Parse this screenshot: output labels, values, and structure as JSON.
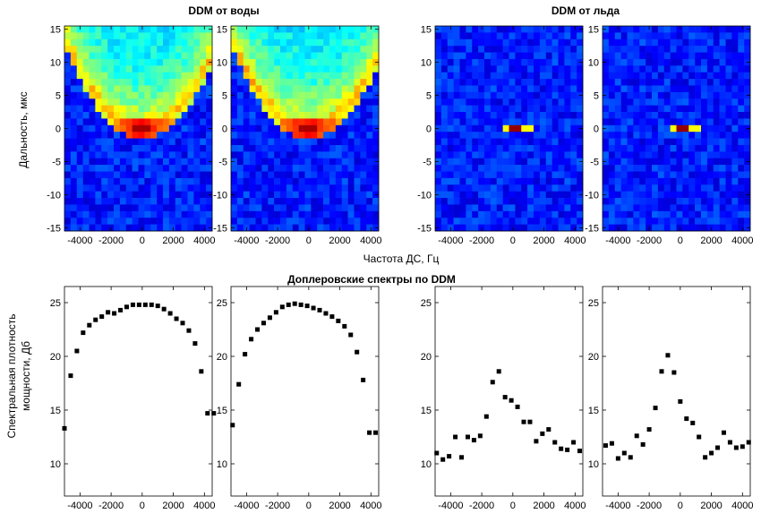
{
  "titles": {
    "water": "DDM от воды",
    "ice": "DDM от льда",
    "spectra": "Доплеровские спектры по DDM"
  },
  "axis_labels": {
    "ddm_y": "Дальность, мкс",
    "ddm_x": "Частота ДС, Гц",
    "spec_y_line1": "Спектральная плотность",
    "spec_y_line2": "мощности, Дб"
  },
  "chart_data": [
    {
      "type": "heatmap",
      "id": "ddm-water-1",
      "title": "DDM от воды",
      "ylabel": "Дальность, мкс",
      "xlim": [
        -5000,
        4500
      ],
      "ylim": [
        -15.5,
        15.5
      ],
      "xticks": [
        -4000,
        -2000,
        0,
        2000,
        4000
      ],
      "yticks": [
        -15,
        -10,
        -5,
        0,
        5,
        10,
        15
      ],
      "pattern": "parabola",
      "peak": {
        "x": 0,
        "y": 0
      },
      "colormap": "jet"
    },
    {
      "type": "heatmap",
      "id": "ddm-water-2",
      "xlim": [
        -5000,
        4500
      ],
      "ylim": [
        -15.5,
        15.5
      ],
      "xticks": [
        -4000,
        -2000,
        0,
        2000,
        4000
      ],
      "yticks": [
        -15,
        -10,
        -5,
        0,
        5,
        10,
        15
      ],
      "pattern": "parabola",
      "peak": {
        "x": 0,
        "y": 0
      },
      "colormap": "jet"
    },
    {
      "type": "heatmap",
      "id": "ddm-ice-1",
      "title": "DDM от льда",
      "xlim": [
        -5000,
        4500
      ],
      "ylim": [
        -15.5,
        15.5
      ],
      "xticks": [
        -4000,
        -2000,
        0,
        2000,
        4000
      ],
      "yticks": [
        -15,
        -10,
        -5,
        0,
        5,
        10,
        15
      ],
      "pattern": "point",
      "peak": {
        "x": 250,
        "y": 0
      },
      "colormap": "jet"
    },
    {
      "type": "heatmap",
      "id": "ddm-ice-2",
      "xlim": [
        -5000,
        4500
      ],
      "ylim": [
        -15.5,
        15.5
      ],
      "xticks": [
        -4000,
        -2000,
        0,
        2000,
        4000
      ],
      "yticks": [
        -15,
        -10,
        -5,
        0,
        5,
        10,
        15
      ],
      "pattern": "point",
      "peak": {
        "x": 250,
        "y": 0
      },
      "colormap": "jet"
    },
    {
      "type": "scatter",
      "id": "spectrum-water-1",
      "xlim": [
        -5000,
        4500
      ],
      "ylim": [
        7,
        26.5
      ],
      "xticks": [
        -4000,
        -2000,
        0,
        2000,
        4000
      ],
      "yticks": [
        10,
        15,
        20,
        25
      ],
      "x": [
        -5000,
        -4600,
        -4200,
        -3800,
        -3400,
        -3000,
        -2600,
        -2200,
        -1800,
        -1400,
        -1000,
        -600,
        -200,
        200,
        600,
        1000,
        1400,
        1800,
        2200,
        2600,
        3000,
        3400,
        3800,
        4200,
        4600
      ],
      "y": [
        13.3,
        18.2,
        20.5,
        22.2,
        22.9,
        23.4,
        23.7,
        24.1,
        24.0,
        24.3,
        24.6,
        24.8,
        24.8,
        24.8,
        24.8,
        24.7,
        24.4,
        24.0,
        23.5,
        23.1,
        22.4,
        21.2,
        18.6,
        14.7,
        14.7
      ]
    },
    {
      "type": "scatter",
      "id": "spectrum-water-2",
      "xlim": [
        -5000,
        4500
      ],
      "ylim": [
        7,
        26.5
      ],
      "xticks": [
        -4000,
        -2000,
        0,
        2000,
        4000
      ],
      "yticks": [
        10,
        15,
        20,
        25
      ],
      "x": [
        -4900,
        -4500,
        -4100,
        -3700,
        -3300,
        -2900,
        -2500,
        -2100,
        -1700,
        -1300,
        -900,
        -500,
        -100,
        300,
        700,
        1100,
        1500,
        1900,
        2300,
        2700,
        3100,
        3500,
        3900,
        4300
      ],
      "y": [
        13.6,
        17.4,
        20.2,
        21.6,
        22.5,
        23.1,
        23.6,
        24.1,
        24.6,
        24.8,
        24.9,
        24.8,
        24.7,
        24.5,
        24.3,
        24.0,
        23.7,
        23.3,
        22.8,
        22.0,
        20.4,
        17.8,
        12.9,
        12.9
      ]
    },
    {
      "type": "scatter",
      "id": "spectrum-ice-1",
      "xlim": [
        -5000,
        4500
      ],
      "ylim": [
        7,
        26.5
      ],
      "xticks": [
        -4000,
        -2000,
        0,
        2000,
        4000
      ],
      "yticks": [
        10,
        15,
        20,
        25
      ],
      "x": [
        -4900,
        -4500,
        -4100,
        -3700,
        -3300,
        -2900,
        -2500,
        -2100,
        -1700,
        -1300,
        -900,
        -500,
        -100,
        300,
        700,
        1100,
        1500,
        1900,
        2300,
        2700,
        3100,
        3500,
        3900,
        4300
      ],
      "y": [
        11.0,
        10.4,
        10.7,
        12.5,
        10.6,
        12.5,
        12.2,
        12.6,
        14.4,
        17.6,
        18.6,
        16.2,
        15.9,
        15.3,
        13.9,
        13.9,
        12.1,
        12.8,
        13.2,
        12.0,
        11.4,
        11.3,
        12.0,
        11.2
      ]
    },
    {
      "type": "scatter",
      "id": "spectrum-ice-2",
      "xlim": [
        -5000,
        4500
      ],
      "ylim": [
        7,
        26.5
      ],
      "xticks": [
        -4000,
        -2000,
        0,
        2000,
        4000
      ],
      "yticks": [
        10,
        15,
        20,
        25
      ],
      "x": [
        -4800,
        -4400,
        -4000,
        -3600,
        -3200,
        -2800,
        -2400,
        -2000,
        -1600,
        -1200,
        -800,
        -400,
        0,
        400,
        800,
        1200,
        1600,
        2000,
        2400,
        2800,
        3200,
        3600,
        4000,
        4400
      ],
      "y": [
        11.7,
        11.9,
        10.5,
        11.0,
        10.6,
        12.6,
        11.8,
        13.2,
        15.2,
        18.6,
        20.1,
        18.5,
        15.8,
        14.2,
        13.8,
        12.5,
        10.6,
        11.0,
        11.5,
        12.9,
        12.0,
        11.5,
        11.6,
        12.0
      ]
    }
  ]
}
